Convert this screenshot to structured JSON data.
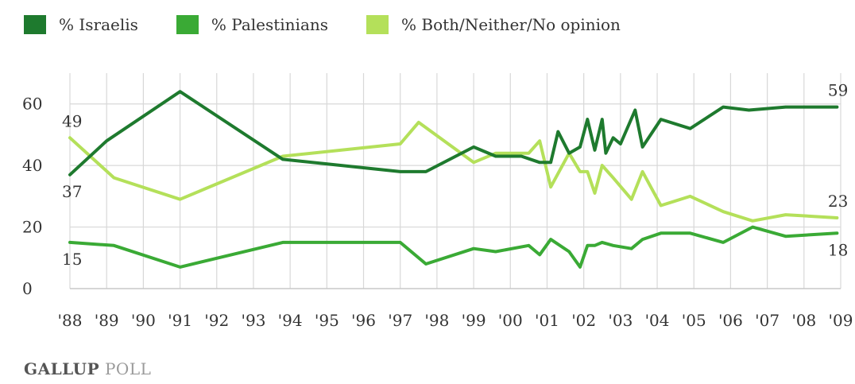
{
  "legend": [
    {
      "label": "% Israelis",
      "color": "#1e7a2e"
    },
    {
      "label": "% Palestinians",
      "color": "#3aaa35"
    },
    {
      "label": "% Both/Neither/No opinion",
      "color": "#b4e05a"
    }
  ],
  "brand": {
    "part1": "GALLUP",
    "part2": "POLL"
  },
  "chart_data": {
    "type": "line",
    "xlabel": "",
    "ylabel": "",
    "xlim": [
      1988,
      2009
    ],
    "ylim": [
      0,
      70
    ],
    "grid": true,
    "legend_position": "top",
    "x_tick_labels": [
      "'88",
      "'89",
      "'90",
      "'91",
      "'92",
      "'93",
      "'94",
      "'95",
      "'96",
      "'97",
      "'98",
      "'99",
      "'00",
      "'01",
      "'02",
      "'03",
      "'04",
      "'05",
      "'06",
      "'07",
      "'08",
      "'09"
    ],
    "y_ticks": [
      0,
      20,
      40,
      60
    ],
    "series": [
      {
        "name": "% Israelis",
        "color": "#1e7a2e",
        "points": [
          [
            1988.0,
            37
          ],
          [
            1989.0,
            48
          ],
          [
            1991.0,
            64
          ],
          [
            1993.8,
            42
          ],
          [
            1997.0,
            38
          ],
          [
            1997.7,
            38
          ],
          [
            1999.0,
            46
          ],
          [
            1999.6,
            43
          ],
          [
            2000.3,
            43
          ],
          [
            2000.8,
            41
          ],
          [
            2001.1,
            41
          ],
          [
            2001.3,
            51
          ],
          [
            2001.6,
            44
          ],
          [
            2001.9,
            46
          ],
          [
            2002.1,
            55
          ],
          [
            2002.3,
            45
          ],
          [
            2002.5,
            55
          ],
          [
            2002.6,
            44
          ],
          [
            2002.8,
            49
          ],
          [
            2003.0,
            47
          ],
          [
            2003.4,
            58
          ],
          [
            2003.6,
            46
          ],
          [
            2004.1,
            55
          ],
          [
            2004.9,
            52
          ],
          [
            2005.8,
            59
          ],
          [
            2006.5,
            58
          ],
          [
            2007.5,
            59
          ],
          [
            2008.9,
            59
          ]
        ],
        "labels": [
          {
            "x": 1988.0,
            "y": 37,
            "text": "37",
            "pos": "below"
          },
          {
            "x": 2008.9,
            "y": 59,
            "text": "59",
            "pos": "above"
          }
        ]
      },
      {
        "name": "% Palestinians",
        "color": "#3aaa35",
        "points": [
          [
            1988.0,
            15
          ],
          [
            1989.2,
            14
          ],
          [
            1991.0,
            7
          ],
          [
            1993.8,
            15
          ],
          [
            1997.0,
            15
          ],
          [
            1997.7,
            8
          ],
          [
            1999.0,
            13
          ],
          [
            1999.6,
            12
          ],
          [
            2000.5,
            14
          ],
          [
            2000.8,
            11
          ],
          [
            2001.1,
            16
          ],
          [
            2001.6,
            12
          ],
          [
            2001.9,
            7
          ],
          [
            2002.1,
            14
          ],
          [
            2002.3,
            14
          ],
          [
            2002.5,
            15
          ],
          [
            2002.8,
            14
          ],
          [
            2003.3,
            13
          ],
          [
            2003.6,
            16
          ],
          [
            2004.1,
            18
          ],
          [
            2004.9,
            18
          ],
          [
            2005.8,
            15
          ],
          [
            2006.6,
            20
          ],
          [
            2007.5,
            17
          ],
          [
            2008.9,
            18
          ]
        ],
        "labels": [
          {
            "x": 1988.0,
            "y": 15,
            "text": "15",
            "pos": "below"
          },
          {
            "x": 2008.9,
            "y": 18,
            "text": "18",
            "pos": "below"
          }
        ]
      },
      {
        "name": "% Both/Neither/No opinion",
        "color": "#b4e05a",
        "points": [
          [
            1988.0,
            49
          ],
          [
            1989.2,
            36
          ],
          [
            1991.0,
            29
          ],
          [
            1993.8,
            43
          ],
          [
            1997.0,
            47
          ],
          [
            1997.5,
            54
          ],
          [
            1999.0,
            41
          ],
          [
            1999.6,
            44
          ],
          [
            2000.5,
            44
          ],
          [
            2000.8,
            48
          ],
          [
            2001.1,
            33
          ],
          [
            2001.6,
            44
          ],
          [
            2001.9,
            38
          ],
          [
            2002.1,
            38
          ],
          [
            2002.3,
            31
          ],
          [
            2002.5,
            40
          ],
          [
            2002.8,
            36
          ],
          [
            2003.3,
            29
          ],
          [
            2003.6,
            38
          ],
          [
            2004.1,
            27
          ],
          [
            2004.9,
            30
          ],
          [
            2005.8,
            25
          ],
          [
            2006.6,
            22
          ],
          [
            2007.5,
            24
          ],
          [
            2008.9,
            23
          ]
        ],
        "labels": [
          {
            "x": 1988.0,
            "y": 49,
            "text": "49",
            "pos": "above"
          },
          {
            "x": 2008.9,
            "y": 23,
            "text": "23",
            "pos": "above"
          }
        ]
      }
    ]
  }
}
